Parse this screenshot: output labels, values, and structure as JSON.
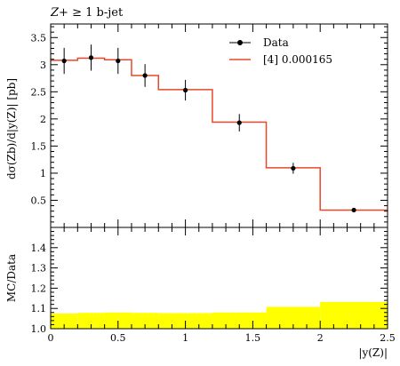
{
  "chart_data": [
    {
      "type": "line",
      "title": "Z+ ≥ 1 b-jet",
      "title_parts": [
        "Z",
        "+ ",
        "≥ 1 b-jet"
      ],
      "ylabel": "dσ(Zb)/d|y(Z)| [pb]",
      "xlim": [
        0,
        2.5
      ],
      "ylim": [
        0,
        3.75
      ],
      "yticks": [
        0.5,
        1,
        1.5,
        2,
        2.5,
        3,
        3.5
      ],
      "ytick_labels": [
        "0.5",
        "1",
        "1.5",
        "2",
        "2.5",
        "3",
        "3.5"
      ],
      "legend": {
        "placement": "top-right",
        "entries": [
          "Data",
          "[4] 0.000165"
        ]
      },
      "series": [
        {
          "name": "Data",
          "style": "points-with-errorbars",
          "color": "#000000",
          "x": [
            0.1,
            0.3,
            0.5,
            0.7,
            1.0,
            1.4,
            1.8,
            2.25
          ],
          "y": [
            3.07,
            3.13,
            3.07,
            2.8,
            2.53,
            1.93,
            1.09,
            0.32
          ],
          "yerr": [
            0.24,
            0.24,
            0.24,
            0.21,
            0.19,
            0.16,
            0.1,
            0.03
          ]
        },
        {
          "name": "[4] 0.000165",
          "style": "step-histogram",
          "color": "#e8482a",
          "bin_edges": [
            0,
            0.2,
            0.4,
            0.6,
            0.8,
            1.2,
            1.6,
            2.0,
            2.5
          ],
          "values": [
            3.08,
            3.12,
            3.09,
            2.8,
            2.54,
            1.94,
            1.1,
            0.32
          ]
        }
      ]
    },
    {
      "type": "area",
      "ylabel": "MC/Data",
      "xlabel": "|y(Z)|",
      "xlim": [
        0,
        2.5
      ],
      "ylim": [
        1.0,
        1.5
      ],
      "xticks": [
        0,
        0.5,
        1,
        1.5,
        2,
        2.5
      ],
      "xtick_labels": [
        "0",
        "0.5",
        "1",
        "1.5",
        "2",
        "2.5"
      ],
      "yticks": [
        1.0,
        1.1,
        1.2,
        1.3,
        1.4
      ],
      "ytick_labels": [
        "1.0",
        "1.1",
        "1.2",
        "1.3",
        "1.4"
      ],
      "band_color": "#ffff00",
      "bin_edges": [
        0,
        0.2,
        0.4,
        0.6,
        0.8,
        1.2,
        1.6,
        2.0,
        2.5
      ],
      "band_low": [
        1.0,
        1.0,
        1.0,
        1.0,
        1.0,
        1.0,
        1.0,
        1.0
      ],
      "band_high": [
        1.075,
        1.078,
        1.08,
        1.078,
        1.077,
        1.08,
        1.108,
        1.132
      ]
    }
  ]
}
